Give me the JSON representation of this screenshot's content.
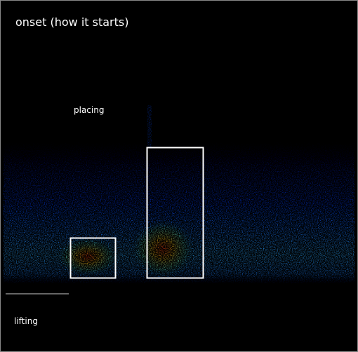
{
  "figure": {
    "title": "onset (how it starts)",
    "labels": {
      "upper": "placing",
      "lower": "lifting"
    }
  }
}
